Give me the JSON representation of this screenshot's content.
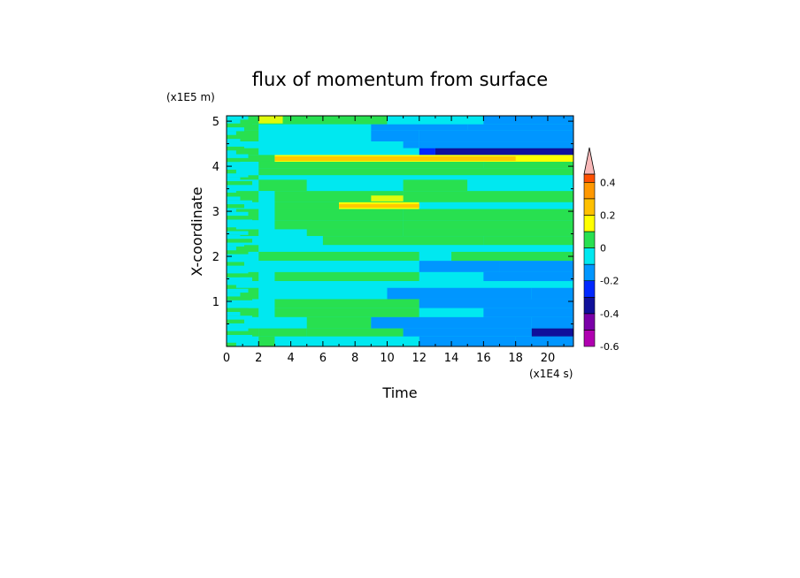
{
  "chart_data": {
    "type": "heatmap",
    "title": "flux of momentum from surface",
    "xlabel": "Time",
    "ylabel": "X-coordinate",
    "x_unit": "(x1E4 s)",
    "y_unit": "(x1E5 m)",
    "xlim": [
      0,
      21.6
    ],
    "ylim": [
      0,
      5.12
    ],
    "x_ticks": [
      "0",
      "2",
      "4",
      "6",
      "8",
      "10",
      "12",
      "14",
      "16",
      "18",
      "20"
    ],
    "x_tick_values": [
      0,
      2,
      4,
      6,
      8,
      10,
      12,
      14,
      16,
      18,
      20
    ],
    "y_ticks": [
      "1",
      "2",
      "3",
      "4",
      "5"
    ],
    "y_tick_values": [
      1,
      2,
      3,
      4,
      5
    ],
    "colorbar": {
      "levels": [
        -0.6,
        -0.5,
        -0.4,
        -0.3,
        -0.2,
        -0.1,
        0,
        0.1,
        0.2,
        0.3,
        0.4,
        0.45
      ],
      "colors": [
        "#b000b0",
        "#7a00a8",
        "#10109a",
        "#0028ff",
        "#0096ff",
        "#00e8f0",
        "#28e050",
        "#ffff00",
        "#ffc000",
        "#ff9800",
        "#ff5000",
        "#e06868"
      ],
      "extend_color": "#f8b8b8",
      "tick_labels": [
        "0.4",
        "0.2",
        "0",
        "-0.2",
        "-0.4",
        "-0.6"
      ],
      "tick_values": [
        0.4,
        0.2,
        0,
        -0.2,
        -0.4,
        -0.6
      ]
    },
    "bands": [
      {
        "y0": 4.93,
        "y1": 5.12,
        "cells": [
          [
            0,
            2,
            0
          ],
          [
            2,
            10,
            0
          ],
          [
            10,
            13,
            -1
          ],
          [
            13,
            16,
            -1
          ],
          [
            16,
            21.6,
            -2
          ]
        ]
      },
      {
        "y0": 4.8,
        "y1": 4.93,
        "cells": [
          [
            0,
            2,
            0
          ],
          [
            2,
            9,
            -1
          ],
          [
            9,
            15,
            -2
          ],
          [
            15,
            21.6,
            -2
          ]
        ]
      },
      {
        "y0": 4.55,
        "y1": 4.8,
        "cells": [
          [
            0,
            2,
            0
          ],
          [
            2,
            9,
            -1
          ],
          [
            9,
            12,
            -2
          ],
          [
            12,
            21.6,
            -2
          ]
        ]
      },
      {
        "y0": 4.4,
        "y1": 4.55,
        "cells": [
          [
            0,
            2,
            -1
          ],
          [
            2,
            11,
            -1
          ],
          [
            11,
            12,
            -2
          ],
          [
            12,
            21.6,
            -2
          ]
        ]
      },
      {
        "y0": 4.25,
        "y1": 4.4,
        "cells": [
          [
            0,
            2,
            0
          ],
          [
            2,
            12,
            -1
          ],
          [
            12,
            13,
            -3
          ],
          [
            13,
            21.6,
            -4
          ]
        ]
      },
      {
        "y0": 4.1,
        "y1": 4.25,
        "cells": [
          [
            0,
            3,
            0
          ],
          [
            3,
            21.6,
            1
          ]
        ]
      },
      {
        "y0": 3.95,
        "y1": 4.1,
        "cells": [
          [
            0,
            2,
            -1
          ],
          [
            2,
            16,
            0
          ],
          [
            16,
            21.6,
            0
          ]
        ]
      },
      {
        "y0": 3.8,
        "y1": 3.95,
        "cells": [
          [
            0,
            2,
            -1
          ],
          [
            2,
            10,
            0
          ],
          [
            10,
            21.6,
            0
          ]
        ]
      },
      {
        "y0": 3.7,
        "y1": 3.8,
        "cells": [
          [
            0,
            2,
            0
          ],
          [
            2,
            12,
            -1
          ],
          [
            12,
            21.6,
            -1
          ]
        ]
      },
      {
        "y0": 3.45,
        "y1": 3.7,
        "cells": [
          [
            0,
            2,
            -1
          ],
          [
            2,
            5,
            0
          ],
          [
            5,
            11,
            -1
          ],
          [
            11,
            15,
            0
          ],
          [
            15,
            21.6,
            -1
          ]
        ]
      },
      {
        "y0": 3.2,
        "y1": 3.45,
        "cells": [
          [
            0,
            2,
            0
          ],
          [
            2,
            3,
            -1
          ],
          [
            3,
            11,
            0
          ],
          [
            11,
            21.6,
            0
          ]
        ]
      },
      {
        "y0": 3.05,
        "y1": 3.2,
        "cells": [
          [
            0,
            2,
            -1
          ],
          [
            2,
            3,
            -1
          ],
          [
            3,
            7,
            0
          ],
          [
            7,
            12,
            1
          ],
          [
            12,
            21.6,
            -1
          ]
        ]
      },
      {
        "y0": 2.8,
        "y1": 3.05,
        "cells": [
          [
            0,
            2,
            0
          ],
          [
            2,
            3,
            -1
          ],
          [
            3,
            11,
            0
          ],
          [
            11,
            21.6,
            0
          ]
        ]
      },
      {
        "y0": 2.6,
        "y1": 2.8,
        "cells": [
          [
            0,
            2,
            -1
          ],
          [
            2,
            3,
            -1
          ],
          [
            3,
            11,
            0
          ],
          [
            11,
            21.6,
            0
          ]
        ]
      },
      {
        "y0": 2.45,
        "y1": 2.6,
        "cells": [
          [
            0,
            2,
            0
          ],
          [
            2,
            5,
            -1
          ],
          [
            5,
            11,
            0
          ],
          [
            11,
            21.6,
            0
          ]
        ]
      },
      {
        "y0": 2.25,
        "y1": 2.45,
        "cells": [
          [
            0,
            2,
            -1
          ],
          [
            2,
            6,
            -1
          ],
          [
            6,
            16,
            0
          ],
          [
            16,
            21.6,
            0
          ]
        ]
      },
      {
        "y0": 2.1,
        "y1": 2.25,
        "cells": [
          [
            0,
            2,
            0
          ],
          [
            2,
            21.6,
            -1
          ]
        ]
      },
      {
        "y0": 1.9,
        "y1": 2.1,
        "cells": [
          [
            0,
            2,
            -1
          ],
          [
            2,
            12,
            0
          ],
          [
            12,
            14,
            -1
          ],
          [
            14,
            21.6,
            0
          ]
        ]
      },
      {
        "y0": 1.65,
        "y1": 1.9,
        "cells": [
          [
            0,
            2,
            -1
          ],
          [
            2,
            12,
            -1
          ],
          [
            12,
            17,
            -2
          ],
          [
            17,
            21.6,
            -2
          ]
        ]
      },
      {
        "y0": 1.45,
        "y1": 1.65,
        "cells": [
          [
            0,
            2,
            0
          ],
          [
            2,
            3,
            -1
          ],
          [
            3,
            12,
            0
          ],
          [
            12,
            16,
            -1
          ],
          [
            16,
            21.6,
            -2
          ]
        ]
      },
      {
        "y0": 1.3,
        "y1": 1.45,
        "cells": [
          [
            0,
            2,
            -1
          ],
          [
            2,
            21.6,
            -1
          ]
        ]
      },
      {
        "y0": 1.05,
        "y1": 1.3,
        "cells": [
          [
            0,
            2,
            0
          ],
          [
            2,
            10,
            -1
          ],
          [
            10,
            19,
            -2
          ],
          [
            19,
            21.6,
            -2
          ]
        ]
      },
      {
        "y0": 0.85,
        "y1": 1.05,
        "cells": [
          [
            0,
            2,
            -1
          ],
          [
            2,
            3,
            -1
          ],
          [
            3,
            12,
            0
          ],
          [
            12,
            21.6,
            -2
          ]
        ]
      },
      {
        "y0": 0.65,
        "y1": 0.85,
        "cells": [
          [
            0,
            2,
            0
          ],
          [
            2,
            3,
            -1
          ],
          [
            3,
            12,
            0
          ],
          [
            12,
            16,
            -1
          ],
          [
            16,
            21.6,
            -2
          ]
        ]
      },
      {
        "y0": 0.4,
        "y1": 0.65,
        "cells": [
          [
            0,
            2,
            -1
          ],
          [
            2,
            5,
            -1
          ],
          [
            5,
            9,
            0
          ],
          [
            9,
            19,
            -2
          ],
          [
            19,
            21.6,
            -2
          ]
        ]
      },
      {
        "y0": 0.22,
        "y1": 0.4,
        "cells": [
          [
            0,
            2,
            0
          ],
          [
            2,
            5,
            0
          ],
          [
            5,
            11,
            0
          ],
          [
            11,
            19,
            -2
          ],
          [
            19,
            21.6,
            -4
          ]
        ]
      },
      {
        "y0": 0.0,
        "y1": 0.22,
        "cells": [
          [
            0,
            2,
            -1
          ],
          [
            2,
            3,
            0
          ],
          [
            3,
            6,
            -1
          ],
          [
            6,
            12,
            -1
          ],
          [
            12,
            18,
            -2
          ],
          [
            18,
            21.6,
            -2
          ]
        ]
      }
    ],
    "highlights": [
      {
        "x0": 3,
        "x1": 18,
        "y0": 4.12,
        "y1": 4.22,
        "level": 2
      },
      {
        "x0": 7,
        "x1": 12,
        "y0": 3.08,
        "y1": 3.16,
        "level": 2
      },
      {
        "x0": 2,
        "x1": 3.5,
        "y0": 4.95,
        "y1": 5.12,
        "level": 1
      },
      {
        "x0": 9,
        "x1": 11,
        "y0": 3.22,
        "y1": 3.35,
        "level": 1
      }
    ]
  }
}
